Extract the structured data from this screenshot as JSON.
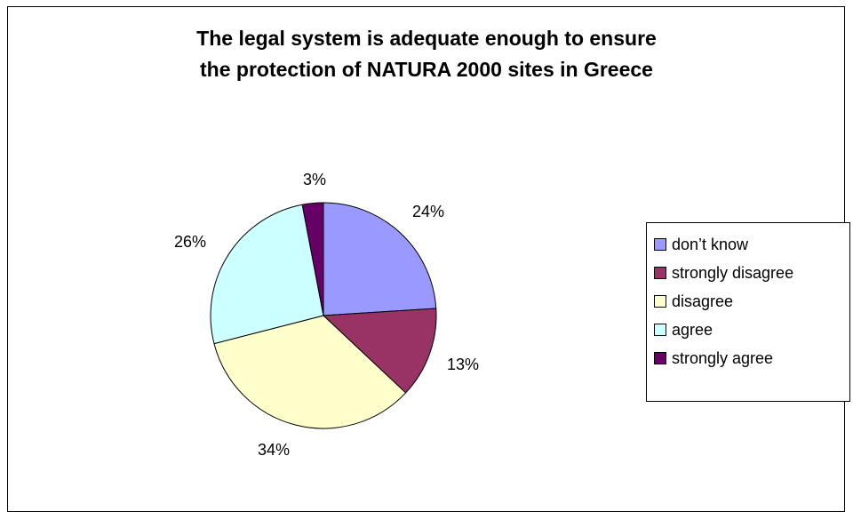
{
  "chart_data": {
    "type": "pie",
    "title": "The legal system is adequate enough to ensure the protection of NATURA 2000 sites in Greece",
    "title_lines": [
      "The legal system is adequate enough to ensure",
      "the protection of NATURA 2000 sites in Greece"
    ],
    "slices": [
      {
        "name": "don’t know",
        "value": 24,
        "label": "24%",
        "color": "#9999FF"
      },
      {
        "name": "strongly disagree",
        "value": 13,
        "label": "13%",
        "color": "#993366"
      },
      {
        "name": "disagree",
        "value": 34,
        "label": "34%",
        "color": "#FFFFCC"
      },
      {
        "name": "agree",
        "value": 26,
        "label": "26%",
        "color": "#CCFFFF"
      },
      {
        "name": "strongly agree",
        "value": 3,
        "label": "3%",
        "color": "#660066"
      }
    ],
    "start": "12 o'clock",
    "direction": "clockwise",
    "legend_position": "right"
  }
}
